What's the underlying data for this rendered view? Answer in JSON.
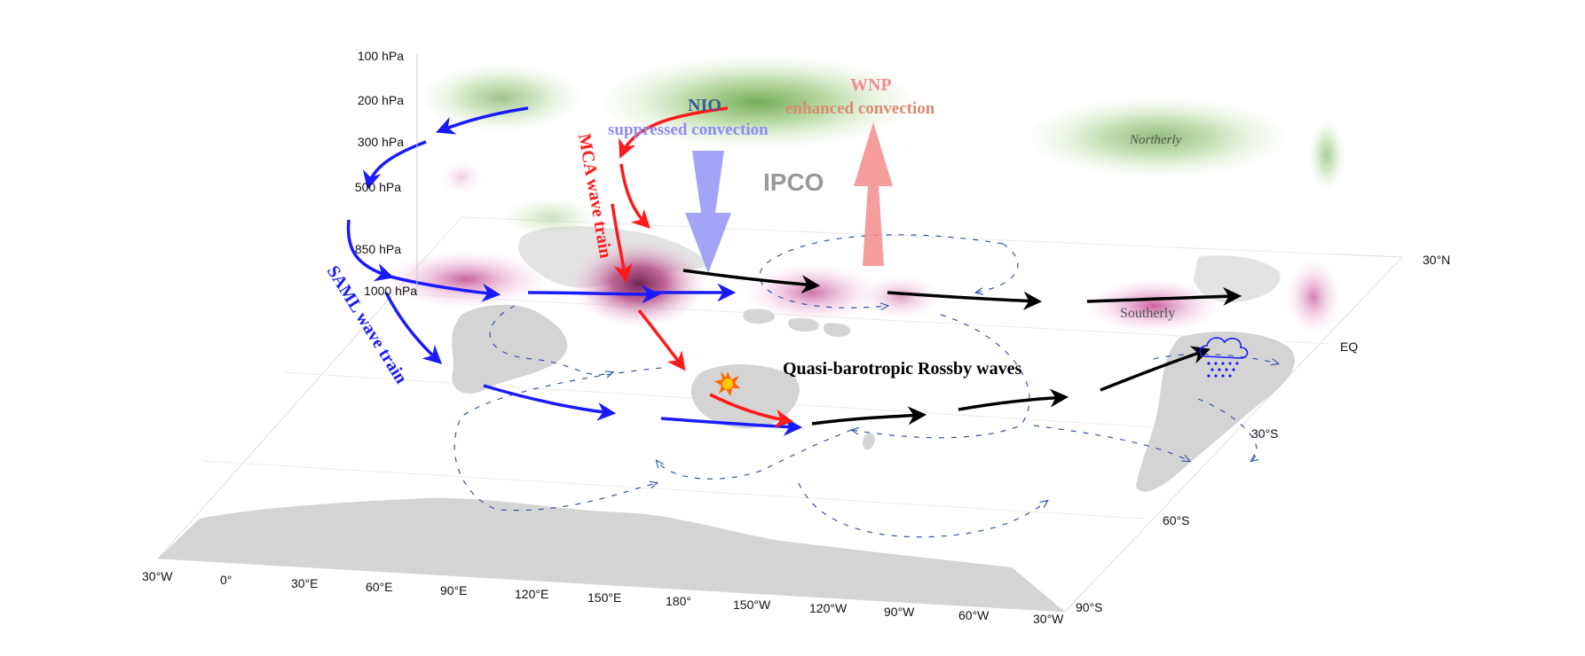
{
  "pressure_levels": [
    "100 hPa",
    "200 hPa",
    "300 hPa",
    "500 hPa",
    "850 hPa",
    "1000 hPa"
  ],
  "longitude_ticks": [
    "30°W",
    "0°",
    "30°E",
    "60°E",
    "90°E",
    "120°E",
    "150°E",
    "180°",
    "150°W",
    "120°W",
    "90°W",
    "60°W",
    "30°W"
  ],
  "latitude_ticks": [
    "30°N",
    "EQ",
    "30°S",
    "60°S",
    "90°S"
  ],
  "labels": {
    "nio": "NIO",
    "suppressed": "suppressed convection",
    "wnp": "WNP",
    "enhanced": "enhanced convection",
    "ipco": "IPCO",
    "northerly": "Northerly",
    "southerly": "Southerly",
    "mca": "MCA wave train",
    "saml": "SAML wave train",
    "rossby": "Quasi-barotropic Rossby waves"
  },
  "colors": {
    "saml_arrow": "#1a1aff",
    "mca_arrow": "#ff1a1a",
    "rossby_arrow": "#000000",
    "flow_arrow": "#3355aa",
    "land": "#d4d4d4",
    "suppressed_arrow": "#8c8cf5",
    "enhanced_arrow": "#f58c8c",
    "northerly_shading": "#8cc864",
    "southerly_shading": "#e0a0d0"
  },
  "icons": [
    "rain-cloud-icon",
    "heating-star-icon"
  ]
}
